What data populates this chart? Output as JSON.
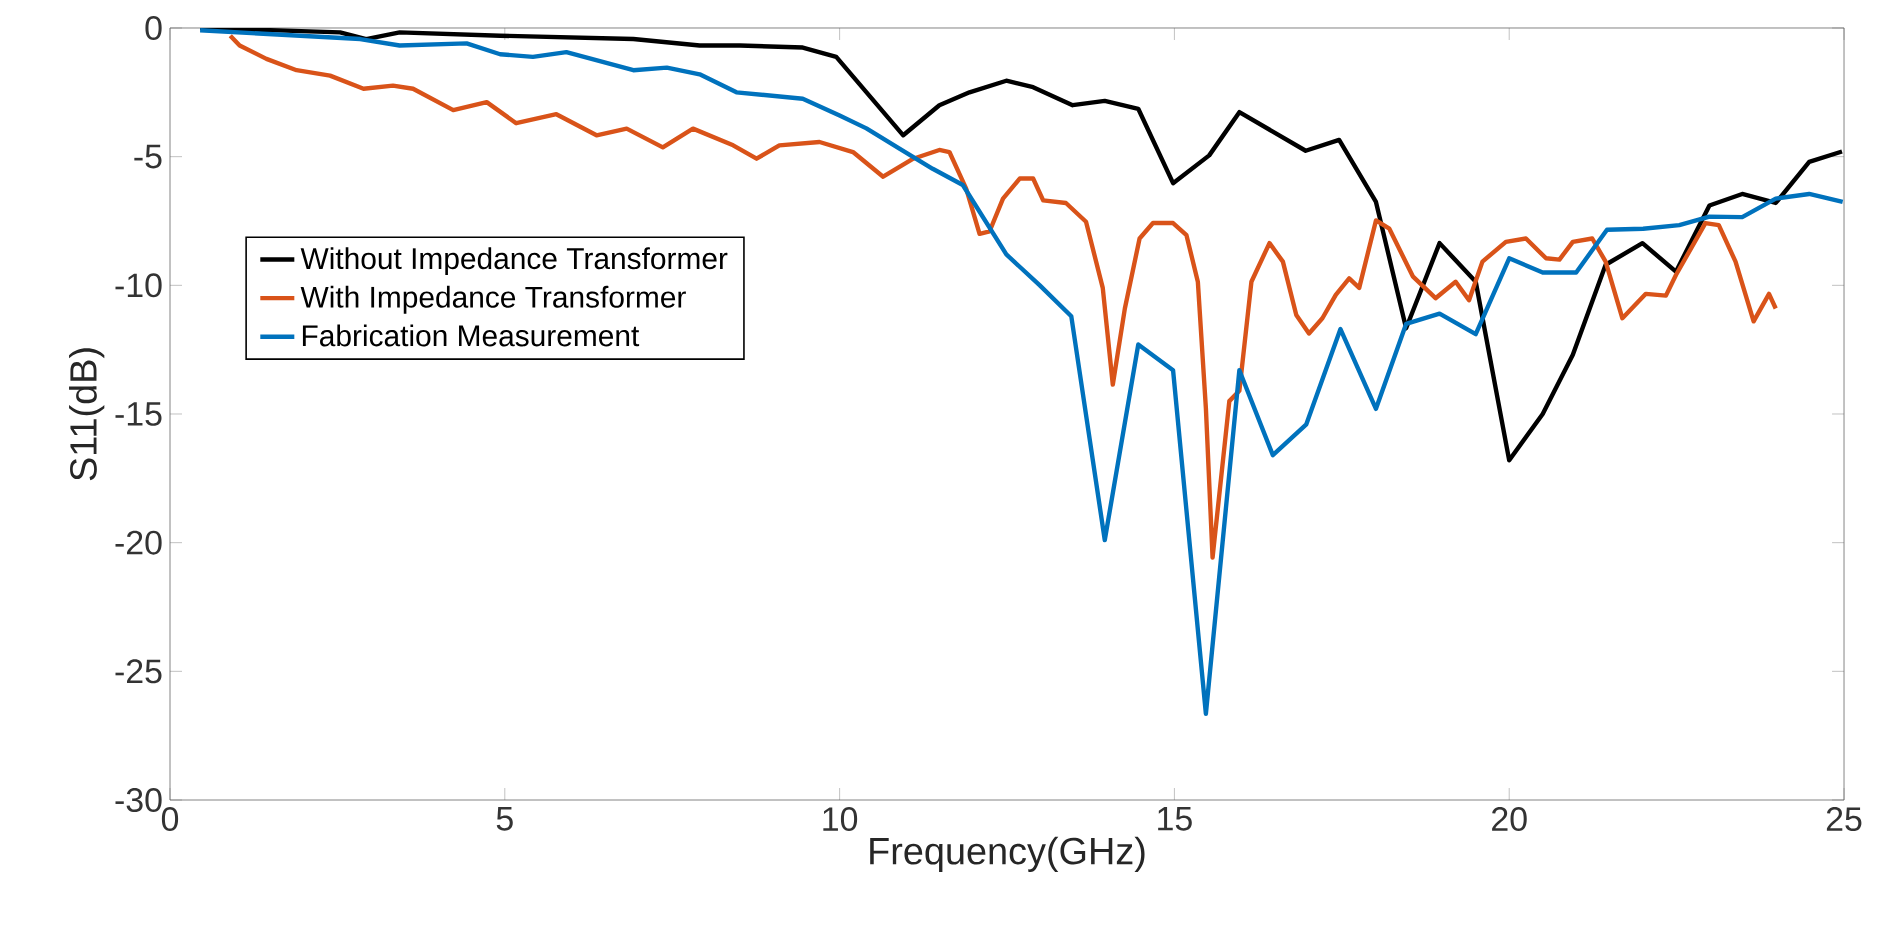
{
  "chart_data": {
    "type": "line",
    "xlabel": "Frequency(GHz)",
    "ylabel": "S11(dB)",
    "xlim": [
      0,
      25
    ],
    "ylim": [
      -30,
      0
    ],
    "xticks": [
      0,
      5,
      10,
      15,
      20,
      25
    ],
    "yticks": [
      -30,
      -25,
      -20,
      -15,
      -10,
      -5,
      0
    ],
    "grid": false,
    "legend": "left",
    "line_style": "solid",
    "marker": "none",
    "series": [
      {
        "name": "Without Impedance Transformer",
        "color": "#000000",
        "x": [
          0.45,
          2.54,
          2.93,
          3.43,
          4.93,
          6.92,
          7.91,
          8.51,
          9.45,
          9.95,
          10.95,
          11.49,
          11.94,
          12.49,
          12.89,
          13.48,
          13.96,
          14.46,
          14.98,
          15.52,
          15.97,
          16.96,
          17.46,
          18.01,
          18.46,
          18.96,
          19.5,
          20.0,
          20.5,
          20.95,
          21.44,
          21.99,
          22.49,
          22.99,
          23.48,
          23.98,
          24.48,
          24.97
        ],
        "values": [
          0,
          -0.17,
          -0.43,
          -0.17,
          -0.3,
          -0.43,
          -0.68,
          -0.68,
          -0.76,
          -1.12,
          -4.17,
          -3.0,
          -2.5,
          -2.05,
          -2.3,
          -3.0,
          -2.83,
          -3.14,
          -6.03,
          -4.95,
          -3.27,
          -4.77,
          -4.35,
          -6.76,
          -11.67,
          -8.36,
          -9.86,
          -16.8,
          -15.0,
          -12.7,
          -9.2,
          -8.36,
          -9.47,
          -6.9,
          -6.45,
          -6.8,
          -5.2,
          -4.8
        ]
      },
      {
        "name": "With Impedance Transformer",
        "color": "#d95319",
        "x": [
          0.9,
          1.04,
          1.44,
          1.89,
          2.39,
          2.89,
          3.33,
          3.63,
          4.23,
          4.73,
          5.17,
          5.77,
          6.37,
          6.82,
          7.36,
          7.81,
          8.41,
          8.76,
          9.1,
          9.7,
          10.2,
          10.65,
          11.1,
          11.49,
          11.64,
          11.89,
          12.09,
          12.24,
          12.44,
          12.69,
          12.89,
          13.04,
          13.38,
          13.68,
          13.93,
          14.08,
          14.26,
          14.48,
          14.68,
          14.98,
          15.18,
          15.35,
          15.47,
          15.57,
          15.82,
          15.97,
          16.15,
          16.42,
          16.62,
          16.82,
          17.01,
          17.21,
          17.41,
          17.61,
          17.76,
          18.01,
          18.21,
          18.56,
          18.9,
          19.2,
          19.4,
          19.6,
          19.95,
          20.25,
          20.55,
          20.75,
          20.95,
          21.24,
          21.44,
          21.69,
          22.04,
          22.34,
          22.49,
          22.93,
          23.13,
          23.38,
          23.65,
          23.88,
          23.98
        ],
        "values": [
          -0.3,
          -0.68,
          -1.2,
          -1.64,
          -1.85,
          -2.36,
          -2.24,
          -2.36,
          -3.19,
          -2.88,
          -3.7,
          -3.35,
          -4.17,
          -3.91,
          -4.64,
          -3.91,
          -4.56,
          -5.08,
          -4.56,
          -4.43,
          -4.82,
          -5.78,
          -5.08,
          -4.74,
          -4.82,
          -6.24,
          -8.0,
          -7.9,
          -6.63,
          -5.85,
          -5.85,
          -6.7,
          -6.8,
          -7.53,
          -10.1,
          -13.86,
          -10.9,
          -8.18,
          -7.58,
          -7.58,
          -8.05,
          -9.86,
          -14.77,
          -20.58,
          -14.5,
          -14.1,
          -9.86,
          -8.36,
          -9.08,
          -11.15,
          -11.87,
          -11.28,
          -10.37,
          -9.73,
          -10.1,
          -7.48,
          -7.8,
          -9.65,
          -10.5,
          -9.86,
          -10.58,
          -9.08,
          -8.31,
          -8.18,
          -8.95,
          -9.0,
          -8.31,
          -8.18,
          -9.08,
          -11.28,
          -10.33,
          -10.4,
          -9.6,
          -7.58,
          -7.66,
          -9.08,
          -11.4,
          -10.33,
          -10.9
        ]
      },
      {
        "name": "Fabrication Measurement",
        "color": "#0072bd",
        "x": [
          0.45,
          2.84,
          3.43,
          4.43,
          4.93,
          5.42,
          5.92,
          6.92,
          7.42,
          7.91,
          8.46,
          9.45,
          10.0,
          10.4,
          10.9,
          11.39,
          11.84,
          12.49,
          12.99,
          13.46,
          13.96,
          14.46,
          14.98,
          15.47,
          15.97,
          16.47,
          16.97,
          17.48,
          18.01,
          18.46,
          18.96,
          19.5,
          20.0,
          20.5,
          21.0,
          21.46,
          22.0,
          22.54,
          22.99,
          23.48,
          23.98,
          24.48,
          24.98
        ],
        "values": [
          -0.09,
          -0.43,
          -0.68,
          -0.6,
          -1.02,
          -1.12,
          -0.94,
          -1.64,
          -1.54,
          -1.8,
          -2.5,
          -2.75,
          -3.4,
          -3.9,
          -4.7,
          -5.47,
          -6.1,
          -8.8,
          -10.0,
          -11.2,
          -19.9,
          -12.3,
          -13.3,
          -26.65,
          -13.3,
          -16.6,
          -15.4,
          -11.7,
          -14.8,
          -11.5,
          -11.1,
          -11.9,
          -8.95,
          -9.5,
          -9.5,
          -7.84,
          -7.8,
          -7.66,
          -7.33,
          -7.35,
          -6.63,
          -6.45,
          -6.76
        ]
      }
    ]
  }
}
